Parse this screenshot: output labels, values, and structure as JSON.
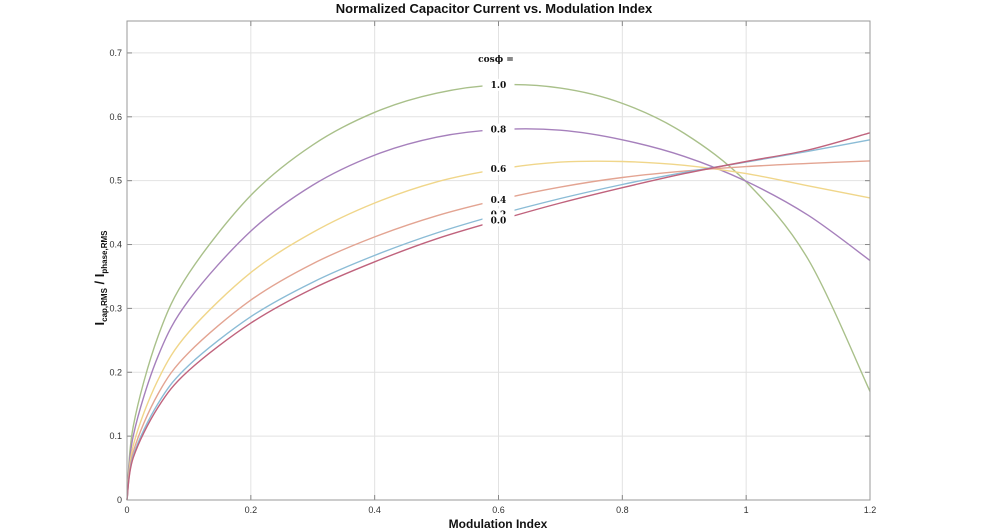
{
  "chart_data": {
    "type": "line",
    "title": "Normalized Capacitor Current vs. Modulation Index",
    "xlabel": "Modulation Index",
    "ylabel": {
      "main": "I",
      "sub1": "cap,RMS",
      "sep": " / I",
      "sub2": "phase,RMS"
    },
    "xlim": [
      0,
      1.2
    ],
    "ylim": [
      0,
      0.75
    ],
    "x_ticks": [
      "0",
      "0.2",
      "0.4",
      "0.6",
      "0.8",
      "1",
      "1.2"
    ],
    "y_ticks": [
      "0",
      "0.1",
      "0.2",
      "0.3",
      "0.4",
      "0.5",
      "0.6",
      "0.7"
    ],
    "grid": true,
    "legend_header": "cosϕ =",
    "series": [
      {
        "name": "1.0",
        "color": "#a9c08a",
        "values": [
          [
            0.01,
            0.115
          ],
          [
            0.05,
            0.256
          ],
          [
            0.1,
            0.355
          ],
          [
            0.2,
            0.477
          ],
          [
            0.3,
            0.556
          ],
          [
            0.4,
            0.607
          ],
          [
            0.5,
            0.637
          ],
          [
            0.6,
            0.65
          ],
          [
            0.7,
            0.645
          ],
          [
            0.8,
            0.621
          ],
          [
            0.9,
            0.574
          ],
          [
            1.0,
            0.498
          ],
          [
            1.1,
            0.377
          ],
          [
            1.2,
            0.17
          ]
        ]
      },
      {
        "name": "0.8",
        "color": "#a680bc",
        "values": [
          [
            0.01,
            0.1
          ],
          [
            0.05,
            0.225
          ],
          [
            0.1,
            0.313
          ],
          [
            0.2,
            0.421
          ],
          [
            0.3,
            0.493
          ],
          [
            0.4,
            0.54
          ],
          [
            0.5,
            0.568
          ],
          [
            0.6,
            0.58
          ],
          [
            0.7,
            0.579
          ],
          [
            0.8,
            0.564
          ],
          [
            0.9,
            0.538
          ],
          [
            1.0,
            0.499
          ],
          [
            1.1,
            0.446
          ],
          [
            1.2,
            0.375
          ]
        ]
      },
      {
        "name": "0.6",
        "color": "#f0d68a",
        "values": [
          [
            0.01,
            0.085
          ],
          [
            0.05,
            0.188
          ],
          [
            0.1,
            0.263
          ],
          [
            0.2,
            0.356
          ],
          [
            0.3,
            0.419
          ],
          [
            0.4,
            0.465
          ],
          [
            0.5,
            0.498
          ],
          [
            0.6,
            0.518
          ],
          [
            0.7,
            0.529
          ],
          [
            0.8,
            0.53
          ],
          [
            0.9,
            0.524
          ],
          [
            1.0,
            0.511
          ],
          [
            1.1,
            0.492
          ],
          [
            1.2,
            0.473
          ]
        ]
      },
      {
        "name": "0.4",
        "color": "#e3a492",
        "values": [
          [
            0.01,
            0.075
          ],
          [
            0.05,
            0.166
          ],
          [
            0.1,
            0.231
          ],
          [
            0.2,
            0.313
          ],
          [
            0.3,
            0.37
          ],
          [
            0.4,
            0.412
          ],
          [
            0.5,
            0.445
          ],
          [
            0.6,
            0.47
          ],
          [
            0.7,
            0.49
          ],
          [
            0.8,
            0.505
          ],
          [
            0.9,
            0.515
          ],
          [
            1.0,
            0.522
          ],
          [
            1.1,
            0.527
          ],
          [
            1.2,
            0.531
          ]
        ]
      },
      {
        "name": "0.2",
        "color": "#8bbcd6",
        "values": [
          [
            0.01,
            0.069
          ],
          [
            0.05,
            0.151
          ],
          [
            0.1,
            0.211
          ],
          [
            0.2,
            0.287
          ],
          [
            0.3,
            0.341
          ],
          [
            0.4,
            0.383
          ],
          [
            0.5,
            0.418
          ],
          [
            0.6,
            0.447
          ],
          [
            0.7,
            0.472
          ],
          [
            0.8,
            0.494
          ],
          [
            0.9,
            0.513
          ],
          [
            1.0,
            0.529
          ],
          [
            1.1,
            0.546
          ],
          [
            1.2,
            0.564
          ]
        ]
      },
      {
        "name": "0.0",
        "color": "#c0637d",
        "values": [
          [
            0.01,
            0.066
          ],
          [
            0.05,
            0.145
          ],
          [
            0.1,
            0.203
          ],
          [
            0.2,
            0.277
          ],
          [
            0.3,
            0.331
          ],
          [
            0.4,
            0.373
          ],
          [
            0.5,
            0.409
          ],
          [
            0.6,
            0.438
          ],
          [
            0.7,
            0.465
          ],
          [
            0.8,
            0.489
          ],
          [
            0.9,
            0.511
          ],
          [
            1.0,
            0.53
          ],
          [
            1.1,
            0.548
          ],
          [
            1.2,
            0.575
          ]
        ]
      }
    ]
  }
}
